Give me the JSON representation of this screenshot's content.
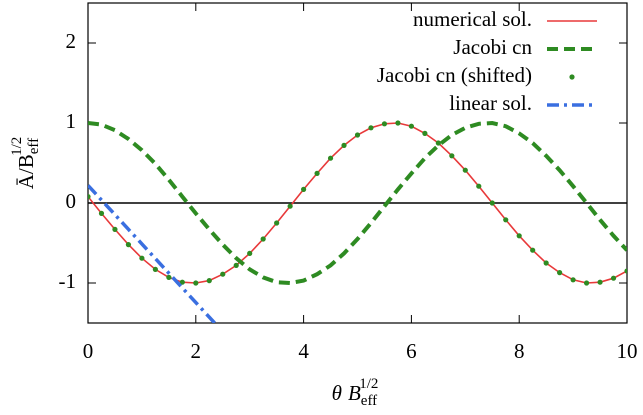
{
  "chart_data": {
    "type": "line",
    "x_label": {
      "main": "θ",
      "var": "B",
      "sub": "eff",
      "sup": "1/2"
    },
    "y_label": {
      "main": "Ā/B",
      "sub": "eff",
      "sup": "1/2"
    },
    "x": [
      0,
      0.25,
      0.5,
      0.75,
      1,
      1.25,
      1.5,
      1.75,
      2,
      2.25,
      2.5,
      2.75,
      3,
      3.25,
      3.5,
      3.75,
      4,
      4.25,
      4.5,
      4.75,
      5,
      5.25,
      5.5,
      5.75,
      6,
      6.25,
      6.5,
      6.75,
      7,
      7.25,
      7.5,
      7.75,
      8,
      8.25,
      8.5,
      8.75,
      9,
      9.25,
      9.5,
      9.75,
      10
    ],
    "series": [
      {
        "name": "numerical sol.",
        "color": "#e8393a",
        "style": "solid",
        "values": [
          0.08,
          -0.13,
          -0.33,
          -0.52,
          -0.69,
          -0.83,
          -0.93,
          -0.99,
          -1.0,
          -0.97,
          -0.89,
          -0.78,
          -0.63,
          -0.45,
          -0.25,
          -0.04,
          0.17,
          0.37,
          0.56,
          0.72,
          0.85,
          0.94,
          0.99,
          1.0,
          0.96,
          0.87,
          0.75,
          0.59,
          0.41,
          0.21,
          0.0,
          -0.21,
          -0.41,
          -0.59,
          -0.75,
          -0.87,
          -0.96,
          -1.0,
          -0.99,
          -0.94,
          -0.85
        ]
      },
      {
        "name": "Jacobi cn",
        "color": "#2e8b22",
        "style": "dashed",
        "values": [
          1,
          0.98,
          0.91,
          0.8,
          0.66,
          0.49,
          0.29,
          0.08,
          -0.13,
          -0.33,
          -0.52,
          -0.69,
          -0.83,
          -0.93,
          -0.99,
          -1.0,
          -0.97,
          -0.89,
          -0.78,
          -0.63,
          -0.45,
          -0.25,
          -0.04,
          0.17,
          0.37,
          0.56,
          0.72,
          0.85,
          0.94,
          0.99,
          1.0,
          0.96,
          0.87,
          0.75,
          0.59,
          0.41,
          0.21,
          0.0,
          -0.21,
          -0.41,
          -0.59
        ]
      },
      {
        "name": "Jacobi cn (shifted)",
        "color": "#2e8b22",
        "style": "points",
        "values": [
          0.08,
          -0.13,
          -0.33,
          -0.52,
          -0.69,
          -0.83,
          -0.93,
          -0.99,
          -1.0,
          -0.97,
          -0.89,
          -0.78,
          -0.63,
          -0.45,
          -0.25,
          -0.04,
          0.17,
          0.37,
          0.56,
          0.72,
          0.85,
          0.94,
          0.99,
          1.0,
          0.96,
          0.87,
          0.75,
          0.59,
          0.41,
          0.21,
          0.0,
          -0.21,
          -0.41,
          -0.59,
          -0.75,
          -0.87,
          -0.96,
          -1.0,
          -0.99,
          -0.94,
          -0.85
        ]
      },
      {
        "name": "linear sol.",
        "color": "#3a6fe0",
        "style": "dashdot",
        "x": [
          0,
          2.35
        ],
        "values": [
          0.22,
          -1.5
        ]
      }
    ],
    "xlim": [
      0,
      10
    ],
    "xticks": [
      0,
      2,
      4,
      6,
      8,
      10
    ],
    "ylim": [
      -1.5,
      2.5
    ],
    "yticks": [
      -1,
      0,
      1,
      2
    ],
    "zero_line": true,
    "legend": "top-right"
  }
}
